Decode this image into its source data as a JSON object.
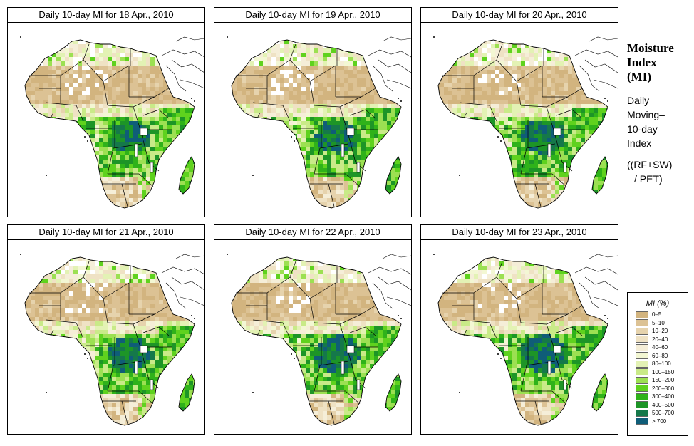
{
  "panels": [
    {
      "title": "Daily 10-day MI for  18 Apr., 2010"
    },
    {
      "title": "Daily 10-day MI for  19 Apr., 2010"
    },
    {
      "title": "Daily 10-day MI for  20 Apr., 2010"
    },
    {
      "title": "Daily 10-day MI for  21 Apr., 2010"
    },
    {
      "title": "Daily 10-day MI for  22 Apr., 2010"
    },
    {
      "title": "Daily 10-day MI for  23 Apr., 2010"
    }
  ],
  "side": {
    "title_lines": [
      "Moisture",
      "Index",
      "(MI)"
    ],
    "desc_lines": [
      "Daily",
      "Moving–",
      "10-day",
      "Index"
    ],
    "formula_lines": [
      "((RF+SW)",
      "/ PET)"
    ]
  },
  "legend": {
    "title": "MI (%)",
    "items": [
      {
        "label": "0–5",
        "color": "#d2b47f"
      },
      {
        "label": "5–10",
        "color": "#dcc294"
      },
      {
        "label": "10–20",
        "color": "#e6d3ad"
      },
      {
        "label": "20–40",
        "color": "#efe2c4"
      },
      {
        "label": "40–60",
        "color": "#f5eed8"
      },
      {
        "label": "60–80",
        "color": "#f3f7d3"
      },
      {
        "label": "80–100",
        "color": "#e3f2b4"
      },
      {
        "label": "100–150",
        "color": "#c9ea88"
      },
      {
        "label": "150–200",
        "color": "#9ce052"
      },
      {
        "label": "200–300",
        "color": "#5fd21e"
      },
      {
        "label": "300–400",
        "color": "#2fb21a"
      },
      {
        "label": "400–500",
        "color": "#1d9527"
      },
      {
        "label": "500–700",
        "color": "#15784a"
      },
      {
        "label": "> 700",
        "color": "#0f5d78"
      }
    ]
  }
}
